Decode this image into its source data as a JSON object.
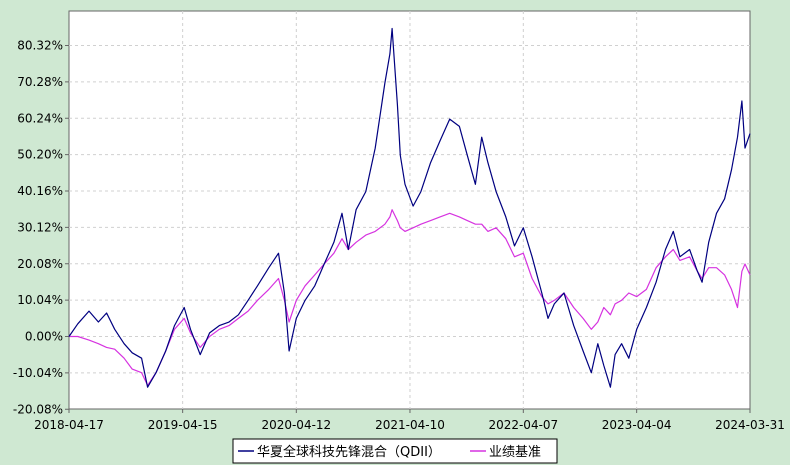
{
  "chart_data": {
    "type": "line",
    "title": "",
    "xlabel": "",
    "ylabel": "",
    "x_ticks": [
      "2018-04-17",
      "2019-04-15",
      "2020-04-12",
      "2021-04-10",
      "2022-04-07",
      "2023-04-04",
      "2024-03-31"
    ],
    "y_ticks": [
      "80.32%",
      "70.28%",
      "60.24%",
      "50.20%",
      "40.16%",
      "30.12%",
      "20.08%",
      "10.04%",
      "0.00%",
      "-10.04%",
      "-20.08%"
    ],
    "ylim": [
      -20.08,
      87.0
    ],
    "xlim": [
      "2018-04-17",
      "2024-03-31"
    ],
    "grid": true,
    "legend_position": "bottom",
    "series": [
      {
        "name": "华夏全球科技先锋混合（QDII）",
        "color": "#000080",
        "points": [
          [
            "2018-04-17",
            0.0
          ],
          [
            "2018-05-15",
            3.5
          ],
          [
            "2018-06-20",
            7.0
          ],
          [
            "2018-07-20",
            4.0
          ],
          [
            "2018-08-15",
            6.5
          ],
          [
            "2018-09-10",
            2.0
          ],
          [
            "2018-10-10",
            -2.0
          ],
          [
            "2018-11-05",
            -4.5
          ],
          [
            "2018-12-05",
            -6.0
          ],
          [
            "2018-12-24",
            -14.0
          ],
          [
            "2019-01-20",
            -10.0
          ],
          [
            "2019-02-20",
            -4.0
          ],
          [
            "2019-03-20",
            3.0
          ],
          [
            "2019-04-20",
            8.0
          ],
          [
            "2019-05-10",
            2.0
          ],
          [
            "2019-06-10",
            -5.0
          ],
          [
            "2019-07-10",
            1.0
          ],
          [
            "2019-08-10",
            3.0
          ],
          [
            "2019-09-10",
            4.0
          ],
          [
            "2019-10-10",
            6.0
          ],
          [
            "2019-11-10",
            10.0
          ],
          [
            "2019-12-10",
            14.0
          ],
          [
            "2020-01-15",
            19.0
          ],
          [
            "2020-02-15",
            23.0
          ],
          [
            "2020-03-05",
            12.0
          ],
          [
            "2020-03-20",
            -4.0
          ],
          [
            "2020-04-12",
            5.0
          ],
          [
            "2020-05-10",
            10.0
          ],
          [
            "2020-06-10",
            14.0
          ],
          [
            "2020-07-10",
            20.0
          ],
          [
            "2020-08-10",
            26.0
          ],
          [
            "2020-09-05",
            34.0
          ],
          [
            "2020-09-25",
            24.0
          ],
          [
            "2020-10-20",
            35.0
          ],
          [
            "2020-11-20",
            40.0
          ],
          [
            "2020-12-20",
            52.0
          ],
          [
            "2021-01-20",
            70.0
          ],
          [
            "2021-02-05",
            78.0
          ],
          [
            "2021-02-12",
            85.0
          ],
          [
            "2021-03-01",
            64.0
          ],
          [
            "2021-03-10",
            50.0
          ],
          [
            "2021-03-25",
            42.0
          ],
          [
            "2021-04-20",
            36.0
          ],
          [
            "2021-05-15",
            40.0
          ],
          [
            "2021-06-15",
            48.0
          ],
          [
            "2021-07-15",
            54.0
          ],
          [
            "2021-08-15",
            60.0
          ],
          [
            "2021-09-15",
            58.0
          ],
          [
            "2021-10-10",
            50.0
          ],
          [
            "2021-11-05",
            42.0
          ],
          [
            "2021-11-25",
            55.0
          ],
          [
            "2021-12-15",
            48.0
          ],
          [
            "2022-01-10",
            40.0
          ],
          [
            "2022-02-10",
            33.0
          ],
          [
            "2022-03-10",
            25.0
          ],
          [
            "2022-04-07",
            30.0
          ],
          [
            "2022-05-05",
            22.0
          ],
          [
            "2022-06-05",
            12.0
          ],
          [
            "2022-06-25",
            5.0
          ],
          [
            "2022-07-15",
            9.0
          ],
          [
            "2022-08-15",
            12.0
          ],
          [
            "2022-09-15",
            3.0
          ],
          [
            "2022-10-15",
            -4.0
          ],
          [
            "2022-11-10",
            -10.0
          ],
          [
            "2022-12-01",
            -2.0
          ],
          [
            "2022-12-20",
            -8.0
          ],
          [
            "2023-01-10",
            -14.0
          ],
          [
            "2023-01-25",
            -5.0
          ],
          [
            "2023-02-15",
            -2.0
          ],
          [
            "2023-03-10",
            -6.0
          ],
          [
            "2023-04-04",
            2.0
          ],
          [
            "2023-05-05",
            8.0
          ],
          [
            "2023-06-05",
            15.0
          ],
          [
            "2023-07-05",
            24.0
          ],
          [
            "2023-07-30",
            29.0
          ],
          [
            "2023-08-20",
            22.0
          ],
          [
            "2023-09-20",
            24.0
          ],
          [
            "2023-10-15",
            18.0
          ],
          [
            "2023-10-30",
            15.0
          ],
          [
            "2023-11-20",
            26.0
          ],
          [
            "2023-12-15",
            34.0
          ],
          [
            "2024-01-10",
            38.0
          ],
          [
            "2024-02-01",
            46.0
          ],
          [
            "2024-02-20",
            55.0
          ],
          [
            "2024-03-05",
            65.0
          ],
          [
            "2024-03-15",
            52.0
          ],
          [
            "2024-03-31",
            56.0
          ]
        ]
      },
      {
        "name": "业绩基准",
        "color": "#d633e0",
        "points": [
          [
            "2018-04-17",
            0.0
          ],
          [
            "2018-05-15",
            0.0
          ],
          [
            "2018-06-20",
            -1.0
          ],
          [
            "2018-07-20",
            -2.0
          ],
          [
            "2018-08-15",
            -3.0
          ],
          [
            "2018-09-10",
            -3.5
          ],
          [
            "2018-10-10",
            -6.0
          ],
          [
            "2018-11-05",
            -9.0
          ],
          [
            "2018-12-05",
            -10.0
          ],
          [
            "2018-12-24",
            -13.5
          ],
          [
            "2019-01-20",
            -10.0
          ],
          [
            "2019-02-20",
            -4.0
          ],
          [
            "2019-03-20",
            2.0
          ],
          [
            "2019-04-20",
            5.0
          ],
          [
            "2019-05-10",
            1.0
          ],
          [
            "2019-06-10",
            -3.0
          ],
          [
            "2019-07-10",
            0.0
          ],
          [
            "2019-08-10",
            2.0
          ],
          [
            "2019-09-10",
            3.0
          ],
          [
            "2019-10-10",
            5.0
          ],
          [
            "2019-11-10",
            7.0
          ],
          [
            "2019-12-10",
            10.0
          ],
          [
            "2020-01-15",
            13.0
          ],
          [
            "2020-02-15",
            16.0
          ],
          [
            "2020-03-05",
            10.0
          ],
          [
            "2020-03-20",
            4.0
          ],
          [
            "2020-04-12",
            10.0
          ],
          [
            "2020-05-10",
            14.0
          ],
          [
            "2020-06-10",
            17.0
          ],
          [
            "2020-07-10",
            20.0
          ],
          [
            "2020-08-10",
            23.0
          ],
          [
            "2020-09-05",
            27.0
          ],
          [
            "2020-09-25",
            24.0
          ],
          [
            "2020-10-20",
            26.0
          ],
          [
            "2020-11-20",
            28.0
          ],
          [
            "2020-12-20",
            29.0
          ],
          [
            "2021-01-20",
            31.0
          ],
          [
            "2021-02-05",
            33.0
          ],
          [
            "2021-02-12",
            35.0
          ],
          [
            "2021-03-01",
            32.0
          ],
          [
            "2021-03-10",
            30.0
          ],
          [
            "2021-03-25",
            29.0
          ],
          [
            "2021-04-20",
            30.0
          ],
          [
            "2021-05-15",
            31.0
          ],
          [
            "2021-06-15",
            32.0
          ],
          [
            "2021-07-15",
            33.0
          ],
          [
            "2021-08-15",
            34.0
          ],
          [
            "2021-09-15",
            33.0
          ],
          [
            "2021-10-10",
            32.0
          ],
          [
            "2021-11-05",
            31.0
          ],
          [
            "2021-11-25",
            31.0
          ],
          [
            "2021-12-15",
            29.0
          ],
          [
            "2022-01-10",
            30.0
          ],
          [
            "2022-02-10",
            27.0
          ],
          [
            "2022-03-10",
            22.0
          ],
          [
            "2022-04-07",
            23.0
          ],
          [
            "2022-05-05",
            16.0
          ],
          [
            "2022-06-05",
            11.0
          ],
          [
            "2022-06-25",
            9.0
          ],
          [
            "2022-07-15",
            10.0
          ],
          [
            "2022-08-15",
            12.0
          ],
          [
            "2022-09-15",
            8.0
          ],
          [
            "2022-10-15",
            5.0
          ],
          [
            "2022-11-10",
            2.0
          ],
          [
            "2022-12-01",
            4.0
          ],
          [
            "2022-12-20",
            8.0
          ],
          [
            "2023-01-10",
            6.0
          ],
          [
            "2023-01-25",
            9.0
          ],
          [
            "2023-02-15",
            10.0
          ],
          [
            "2023-03-10",
            12.0
          ],
          [
            "2023-04-04",
            11.0
          ],
          [
            "2023-05-05",
            13.0
          ],
          [
            "2023-06-05",
            19.0
          ],
          [
            "2023-07-05",
            22.0
          ],
          [
            "2023-07-30",
            24.0
          ],
          [
            "2023-08-20",
            21.0
          ],
          [
            "2023-09-20",
            22.0
          ],
          [
            "2023-10-15",
            18.0
          ],
          [
            "2023-10-30",
            16.0
          ],
          [
            "2023-11-20",
            19.0
          ],
          [
            "2023-12-15",
            19.0
          ],
          [
            "2024-01-10",
            17.0
          ],
          [
            "2024-02-01",
            13.0
          ],
          [
            "2024-02-20",
            8.0
          ],
          [
            "2024-03-05",
            18.0
          ],
          [
            "2024-03-15",
            20.0
          ],
          [
            "2024-03-31",
            17.0
          ]
        ]
      }
    ]
  }
}
